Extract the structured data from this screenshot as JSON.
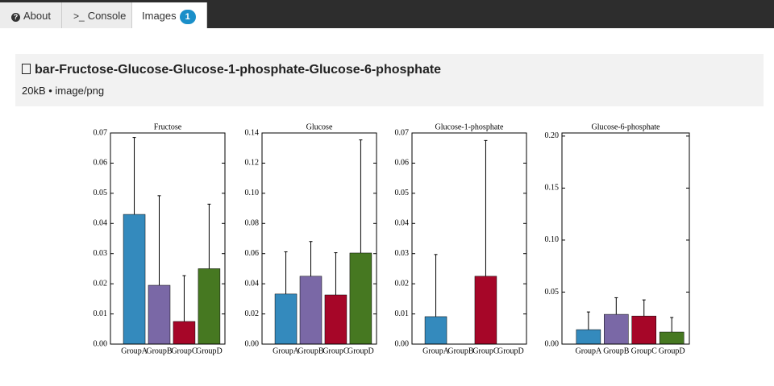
{
  "tabs": [
    {
      "label": "About"
    },
    {
      "label": "Console"
    },
    {
      "label": "Images",
      "badge": 1
    }
  ],
  "file": {
    "title": "bar-Fructose-Glucose-Glucose-1-phosphate-Glucose-6-phosphate",
    "meta": "20kB • image/png"
  },
  "chart_data": [
    {
      "type": "bar",
      "title": "Fructose",
      "categories": [
        "GroupA",
        "GroupB",
        "GroupC",
        "GroupD"
      ],
      "values": [
        0.043,
        0.0195,
        0.0075,
        0.025
      ],
      "errors": [
        0.0255,
        0.0297,
        0.0152,
        0.0214
      ],
      "colors": [
        "#348abd",
        "#7a68a6",
        "#a60628",
        "#467821"
      ],
      "ylim": [
        0,
        0.07
      ],
      "yticks": [
        {
          "value": 0,
          "label": "0.00"
        },
        0.01,
        0.02,
        0.03,
        0.04,
        0.05,
        0.06,
        0.07
      ]
    },
    {
      "type": "bar",
      "title": "Glucose",
      "categories": [
        "GroupA",
        "GroupB",
        "GroupC",
        "GroupD"
      ],
      "values": [
        0.0332,
        0.045,
        0.0326,
        0.0604
      ],
      "errors": [
        0.028,
        0.023,
        0.028,
        0.075
      ],
      "colors": [
        "#348abd",
        "#7a68a6",
        "#a60628",
        "#467821"
      ],
      "ylim": [
        0,
        0.14
      ],
      "yticks": [
        {
          "value": 0,
          "label": "0.00"
        },
        0.02,
        0.04,
        0.06,
        0.08,
        {
          "value": 0.1,
          "label": "0.10"
        },
        0.12,
        0.14
      ]
    },
    {
      "type": "bar",
      "title": "Glucose-1-phosphate",
      "categories": [
        "GroupA",
        "GroupB",
        "GroupC",
        "GroupD"
      ],
      "values": [
        0.0091,
        0,
        0.0225,
        0
      ],
      "errors": [
        0.0206,
        0,
        0.045,
        0
      ],
      "colors": [
        "#348abd",
        "#7a68a6",
        "#a60628",
        "#467821"
      ],
      "ylim": [
        0,
        0.07
      ],
      "yticks": [
        {
          "value": 0,
          "label": "0.00"
        },
        0.01,
        0.02,
        0.03,
        0.04,
        0.05,
        0.06,
        0.07
      ]
    },
    {
      "type": "bar",
      "title": "Glucose-6-phosphate",
      "categories": [
        "GroupA",
        "GroupB",
        "GroupC",
        "GroupD"
      ],
      "values": [
        0.0139,
        0.0286,
        0.027,
        0.0116
      ],
      "errors": [
        0.017,
        0.016,
        0.0155,
        0.014
      ],
      "colors": [
        "#348abd",
        "#7a68a6",
        "#a60628",
        "#467821"
      ],
      "ylim": [
        0,
        0.203
      ],
      "yticks": [
        {
          "value": 0,
          "label": "0.00"
        },
        0.05,
        {
          "value": 0.1,
          "label": "0.10"
        },
        0.15,
        {
          "value": 0.2,
          "label": "0.20"
        }
      ]
    }
  ]
}
